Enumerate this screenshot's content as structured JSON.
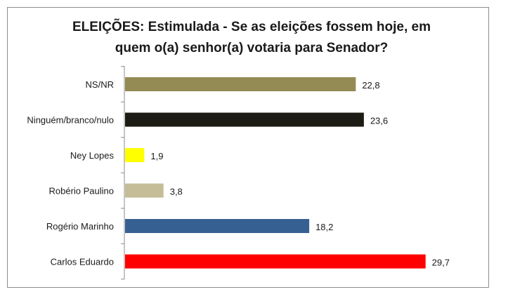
{
  "chart_data": {
    "type": "bar",
    "orientation": "horizontal",
    "title_line1": "ELEIÇÕES: Estimulada - Se as eleições fossem hoje, em",
    "title_line2": "quem o(a) senhor(a) votaria para Senador?",
    "categories": [
      "NS/NR",
      "Ninguém/branco/nulo",
      "Ney Lopes",
      "Robério Paulino",
      "Rogério Marinho",
      "Carlos Eduardo"
    ],
    "values": [
      22.8,
      23.6,
      1.9,
      3.8,
      18.2,
      29.7
    ],
    "value_labels": [
      "22,8",
      "23,6",
      "1,9",
      "3,8",
      "18,2",
      "29,7"
    ],
    "colors": [
      "#948a54",
      "#1c1c14",
      "#ffff00",
      "#c4bd97",
      "#376092",
      "#ff0000"
    ],
    "xlim": [
      0,
      30
    ],
    "xlabel": "",
    "ylabel": "",
    "grid": false,
    "legend": "none"
  }
}
